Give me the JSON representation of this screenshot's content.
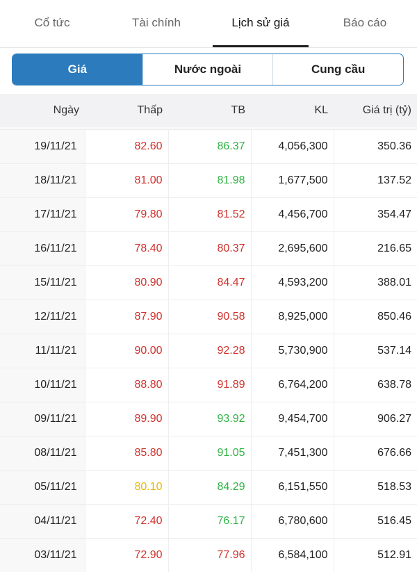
{
  "tabs": {
    "items": [
      "Cổ tức",
      "Tài chính",
      "Lịch sử giá",
      "Báo cáo"
    ],
    "active": 2
  },
  "segments": {
    "items": [
      "Giá",
      "Nước ngoài",
      "Cung cầu"
    ],
    "active": 0
  },
  "table": {
    "headers": [
      "Ngày",
      "Thấp",
      "TB",
      "KL",
      "Giá trị (tỷ)"
    ],
    "rows": [
      {
        "date": "19/11/21",
        "low": "82.60",
        "low_color": "#d0312d",
        "avg": "86.37",
        "avg_color": "#2fb344",
        "volume": "4,056,300",
        "value": "350.36"
      },
      {
        "date": "18/11/21",
        "low": "81.00",
        "low_color": "#d0312d",
        "avg": "81.98",
        "avg_color": "#2fb344",
        "volume": "1,677,500",
        "value": "137.52"
      },
      {
        "date": "17/11/21",
        "low": "79.80",
        "low_color": "#d0312d",
        "avg": "81.52",
        "avg_color": "#d0312d",
        "volume": "4,456,700",
        "value": "354.47"
      },
      {
        "date": "16/11/21",
        "low": "78.40",
        "low_color": "#d0312d",
        "avg": "80.37",
        "avg_color": "#d0312d",
        "volume": "2,695,600",
        "value": "216.65"
      },
      {
        "date": "15/11/21",
        "low": "80.90",
        "low_color": "#d0312d",
        "avg": "84.47",
        "avg_color": "#d0312d",
        "volume": "4,593,200",
        "value": "388.01"
      },
      {
        "date": "12/11/21",
        "low": "87.90",
        "low_color": "#d0312d",
        "avg": "90.58",
        "avg_color": "#d0312d",
        "volume": "8,925,000",
        "value": "850.46"
      },
      {
        "date": "11/11/21",
        "low": "90.00",
        "low_color": "#d0312d",
        "avg": "92.28",
        "avg_color": "#d0312d",
        "volume": "5,730,900",
        "value": "537.14"
      },
      {
        "date": "10/11/21",
        "low": "88.80",
        "low_color": "#d0312d",
        "avg": "91.89",
        "avg_color": "#d0312d",
        "volume": "6,764,200",
        "value": "638.78"
      },
      {
        "date": "09/11/21",
        "low": "89.90",
        "low_color": "#d0312d",
        "avg": "93.92",
        "avg_color": "#2fb344",
        "volume": "9,454,700",
        "value": "906.27"
      },
      {
        "date": "08/11/21",
        "low": "85.80",
        "low_color": "#d0312d",
        "avg": "91.05",
        "avg_color": "#2fb344",
        "volume": "7,451,300",
        "value": "676.66"
      },
      {
        "date": "05/11/21",
        "low": "80.10",
        "low_color": "#e6b800",
        "avg": "84.29",
        "avg_color": "#2fb344",
        "volume": "6,151,550",
        "value": "518.53"
      },
      {
        "date": "04/11/21",
        "low": "72.40",
        "low_color": "#d0312d",
        "avg": "76.17",
        "avg_color": "#2fb344",
        "volume": "6,780,600",
        "value": "516.45"
      },
      {
        "date": "03/11/21",
        "low": "72.90",
        "low_color": "#d0312d",
        "avg": "77.96",
        "avg_color": "#d0312d",
        "volume": "6,584,100",
        "value": "512.91"
      }
    ]
  }
}
